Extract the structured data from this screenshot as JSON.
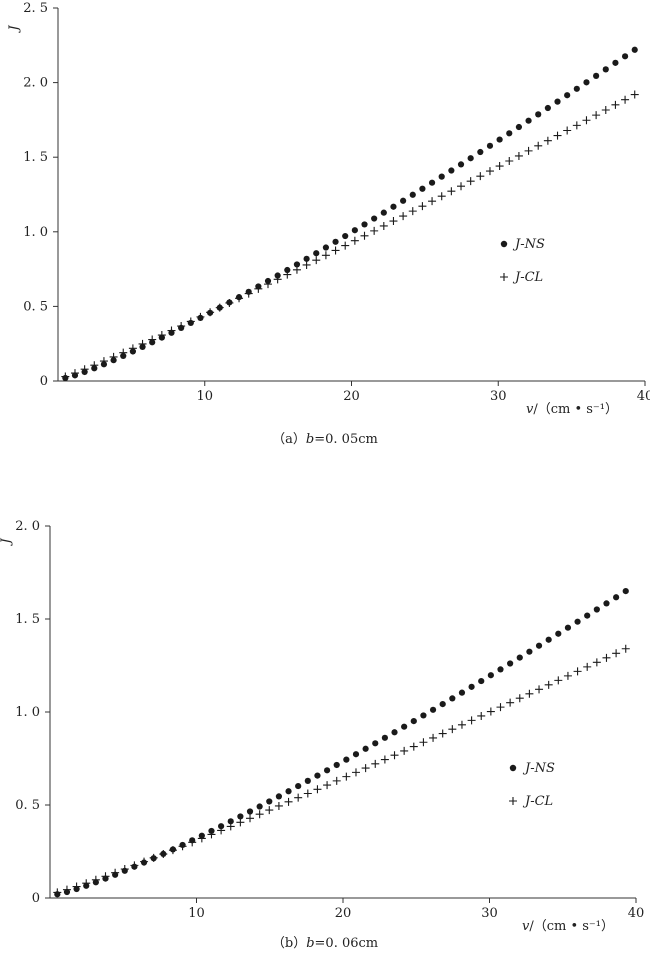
{
  "chart_data": [
    {
      "type": "scatter",
      "caption_prefix": "（a）",
      "caption_var": "b",
      "caption_value": "=0. 05cm",
      "ylabel": "J",
      "xlabel_var": "v",
      "xlabel_unit": "/（cm • s⁻¹）",
      "xlim": [
        0,
        40
      ],
      "ylim": [
        0,
        2.5
      ],
      "xticks": [
        10,
        20,
        30,
        40
      ],
      "yticks": [
        0,
        0.5,
        1.0,
        1.5,
        2.0,
        2.5
      ],
      "ytick_labels": [
        "0",
        "0. 5",
        "1. 0",
        "1. 5",
        "2. 0",
        "2. 5"
      ],
      "grid": false,
      "legend_position": "right-middle",
      "x_range": [
        0.5,
        39.3
      ],
      "n_points": 60,
      "series": [
        {
          "name": "J-NS",
          "marker": "dot",
          "y_start": 0.02,
          "y_end": 2.22,
          "exponent": 1.18
        },
        {
          "name": "J-CL",
          "marker": "plus",
          "y_start": 0.03,
          "y_end": 1.92,
          "exponent": 1.08
        }
      ]
    },
    {
      "type": "scatter",
      "caption_prefix": "（b）",
      "caption_var": "b",
      "caption_value": "=0. 06cm",
      "ylabel": "J",
      "xlabel_var": "v",
      "xlabel_unit": "/（cm • s⁻¹）",
      "xlim": [
        0,
        40
      ],
      "ylim": [
        0,
        2.0
      ],
      "xticks": [
        10,
        20,
        30,
        40
      ],
      "yticks": [
        0,
        0.5,
        1.0,
        1.5,
        2.0
      ],
      "ytick_labels": [
        "0",
        "0. 5",
        "1. 0",
        "1. 5",
        "2. 0"
      ],
      "grid": false,
      "legend_position": "right-middle",
      "x_range": [
        0.5,
        39.3
      ],
      "n_points": 60,
      "series": [
        {
          "name": "J-NS",
          "marker": "dot",
          "y_start": 0.02,
          "y_end": 1.65,
          "exponent": 1.2
        },
        {
          "name": "J-CL",
          "marker": "plus",
          "y_start": 0.03,
          "y_end": 1.34,
          "exponent": 1.1
        }
      ]
    }
  ]
}
